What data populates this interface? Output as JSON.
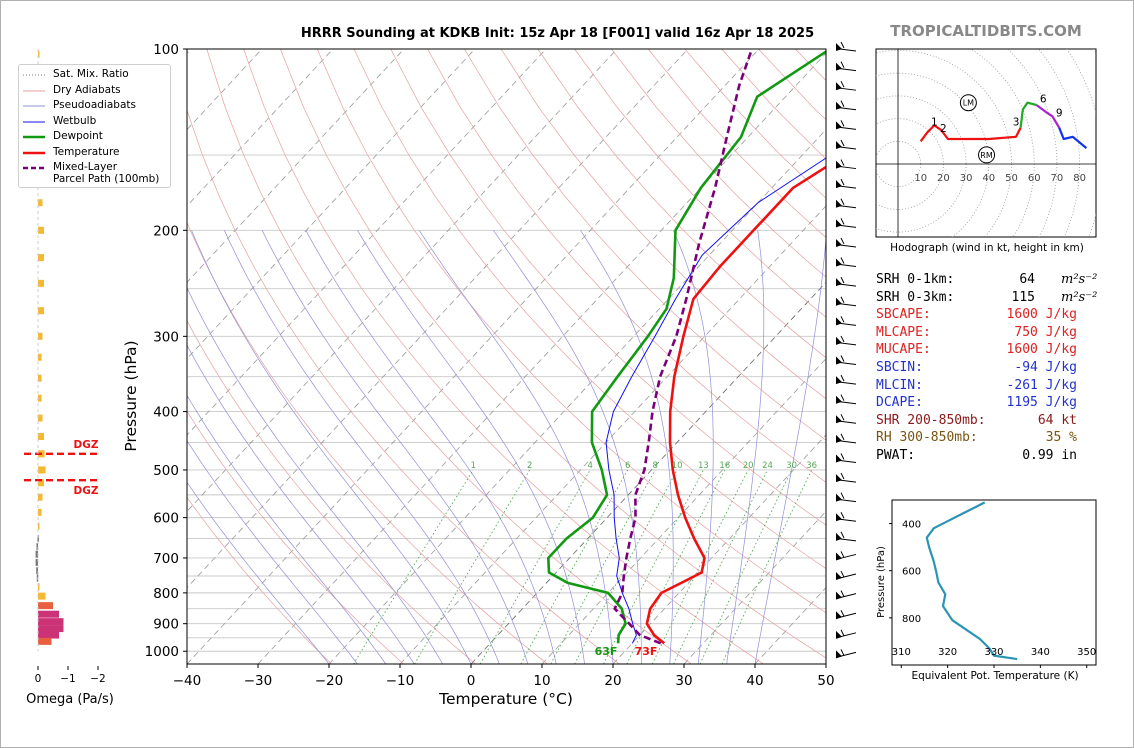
{
  "title": "HRRR Sounding at KDKB Init: 15z Apr 18 [F001] valid 16z Apr 18 2025",
  "site": "TROPICALTIDBITS.COM",
  "legend": [
    {
      "label": "Sat. Mix. Ratio",
      "color": "#777777",
      "style": "dotted"
    },
    {
      "label": "Dry Adiabats",
      "color": "#e6a0a0",
      "style": "solid"
    },
    {
      "label": "Pseudoadiabats",
      "color": "#9090d8",
      "style": "solid"
    },
    {
      "label": "Wetbulb",
      "color": "#1010ee",
      "style": "solid"
    },
    {
      "label": "Dewpoint",
      "color": "#119911",
      "style": "thick"
    },
    {
      "label": "Temperature",
      "color": "#ee1111",
      "style": "thick"
    },
    {
      "label": "Mixed-Layer",
      "label2": "Parcel Path (100mb)",
      "color": "#7a007a",
      "style": "dashed"
    }
  ],
  "params": [
    {
      "label": "SRH 0-1km:",
      "value": "64",
      "unit": "m²s⁻²",
      "color": "#000000"
    },
    {
      "label": "SRH 0-3km:",
      "value": "115",
      "unit": "m²s⁻²",
      "color": "#000000"
    },
    {
      "label": "SBCAPE:",
      "value": "1600 J/kg",
      "unit": "",
      "color": "#dd2222"
    },
    {
      "label": "MLCAPE:",
      "value": "750 J/kg",
      "unit": "",
      "color": "#dd2222"
    },
    {
      "label": "MUCAPE:",
      "value": "1600 J/kg",
      "unit": "",
      "color": "#dd2222"
    },
    {
      "label": "SBCIN:",
      "value": "-94 J/kg",
      "unit": "",
      "color": "#2233cc"
    },
    {
      "label": "MLCIN:",
      "value": "-261 J/kg",
      "unit": "",
      "color": "#2233cc"
    },
    {
      "label": "DCAPE:",
      "value": "1195 J/kg",
      "unit": "",
      "color": "#2233cc"
    },
    {
      "label": "SHR 200-850mb:",
      "value": "64 kt",
      "unit": "",
      "color": "#8a1a1a"
    },
    {
      "label": "RH 300-850mb:",
      "value": "35 %",
      "unit": "",
      "color": "#7a5510"
    },
    {
      "label": "PWAT:",
      "value": "0.99 in",
      "unit": "",
      "color": "#000000"
    }
  ],
  "chart_data": [
    {
      "type": "line",
      "title": "HRRR Sounding at KDKB Init: 15z Apr 18 [F001] valid 16z Apr 18 2025",
      "xlabel": "Temperature (°C)",
      "ylabel": "Pressure (hPa)",
      "xlim": [
        -40,
        50
      ],
      "ylim": [
        1050,
        100
      ],
      "y_scale": "log",
      "skew": "skew-T",
      "x_ticks": [
        "−40",
        "−30",
        "−20",
        "−10",
        "0",
        "10",
        "20",
        "30",
        "40",
        "50"
      ],
      "y_ticks": [
        "100",
        "200",
        "300",
        "400",
        "500",
        "600",
        "700",
        "800",
        "900",
        "1000"
      ],
      "mixing_ratio_labels": [
        "1",
        "2",
        "4",
        "6",
        "8",
        "10",
        "13",
        "16",
        "20",
        "24",
        "30",
        "36"
      ],
      "surface_labels": {
        "dewpoint": "63F",
        "temperature": "73F"
      },
      "series": [
        {
          "name": "Temperature",
          "color": "#ee1111",
          "points": [
            [
              24.5,
              970
            ],
            [
              22,
              940
            ],
            [
              19.5,
              900
            ],
            [
              18,
              850
            ],
            [
              17.5,
              800
            ],
            [
              19,
              770
            ],
            [
              20.5,
              740
            ],
            [
              19,
              700
            ],
            [
              15,
              650
            ],
            [
              11,
              600
            ],
            [
              7,
              550
            ],
            [
              3,
              500
            ],
            [
              -1,
              450
            ],
            [
              -5,
              400
            ],
            [
              -9,
              350
            ],
            [
              -13,
              300
            ],
            [
              -16.5,
              260
            ],
            [
              -17,
              230
            ],
            [
              -17,
              200
            ],
            [
              -17,
              170
            ],
            [
              -14,
              150
            ],
            [
              -8,
              130
            ],
            [
              -4,
              120
            ],
            [
              3,
              100
            ]
          ]
        },
        {
          "name": "Dewpoint",
          "color": "#119911",
          "points": [
            [
              18,
              970
            ],
            [
              17,
              940
            ],
            [
              16.5,
              900
            ],
            [
              14,
              850
            ],
            [
              10,
              800
            ],
            [
              3,
              770
            ],
            [
              -1,
              740
            ],
            [
              -3,
              700
            ],
            [
              -3,
              650
            ],
            [
              -2,
              600
            ],
            [
              -3,
              550
            ],
            [
              -7,
              500
            ],
            [
              -12,
              450
            ],
            [
              -16,
              400
            ],
            [
              -17,
              350
            ],
            [
              -18,
              300
            ],
            [
              -19,
              270
            ],
            [
              -22,
              240
            ],
            [
              -28,
              200
            ],
            [
              -30,
              170
            ],
            [
              -31,
              140
            ],
            [
              -34,
              120
            ],
            [
              -30,
              100
            ]
          ]
        },
        {
          "name": "Wetbulb",
          "color": "#1010ee",
          "points": [
            [
              20,
              970
            ],
            [
              19.5,
              940
            ],
            [
              17.5,
              900
            ],
            [
              15,
              850
            ],
            [
              12,
              800
            ],
            [
              9,
              750
            ],
            [
              7,
              700
            ],
            [
              4,
              650
            ],
            [
              1,
              600
            ],
            [
              -2,
              550
            ],
            [
              -6,
              500
            ],
            [
              -10,
              450
            ],
            [
              -13,
              400
            ],
            [
              -15,
              350
            ],
            [
              -17,
              300
            ],
            [
              -19,
              260
            ],
            [
              -21,
              220
            ],
            [
              -20,
              180
            ],
            [
              -16,
              150
            ],
            [
              -8,
              130
            ],
            [
              -4,
              120
            ],
            [
              3,
              100
            ]
          ]
        },
        {
          "name": "Mixed-Layer Parcel Path (100mb)",
          "color": "#7a007a",
          "points": [
            [
              24,
              970
            ],
            [
              20,
              940
            ],
            [
              17,
              900
            ],
            [
              13,
              850
            ],
            [
              12,
              800
            ],
            [
              10,
              750
            ],
            [
              8,
              700
            ],
            [
              6,
              650
            ],
            [
              4,
              600
            ],
            [
              1,
              550
            ],
            [
              -1,
              500
            ],
            [
              -4,
              450
            ],
            [
              -7.5,
              400
            ],
            [
              -11,
              350
            ],
            [
              -14,
              300
            ],
            [
              -17.5,
              260
            ],
            [
              -23,
              210
            ],
            [
              -28,
              170
            ],
            [
              -33,
              140
            ],
            [
              -38,
              115
            ],
            [
              -41,
              100
            ]
          ]
        }
      ]
    },
    {
      "type": "bar",
      "xlabel": "Omega (Pa/s)",
      "x_ticks": [
        "0",
        "−1",
        "−2"
      ],
      "annotations": [
        "DGZ",
        "DGZ"
      ],
      "dgz_pressure": [
        470,
        520
      ],
      "bars": [
        {
          "p": 102,
          "omega": -0.05
        },
        {
          "p": 118,
          "omega": -0.05
        },
        {
          "p": 135,
          "omega": -0.08
        },
        {
          "p": 150,
          "omega": -0.12
        },
        {
          "p": 163,
          "omega": -0.12
        },
        {
          "p": 180,
          "omega": -0.15
        },
        {
          "p": 200,
          "omega": -0.2
        },
        {
          "p": 222,
          "omega": -0.2
        },
        {
          "p": 245,
          "omega": -0.2
        },
        {
          "p": 272,
          "omega": -0.2
        },
        {
          "p": 300,
          "omega": -0.15
        },
        {
          "p": 325,
          "omega": -0.12
        },
        {
          "p": 352,
          "omega": -0.12
        },
        {
          "p": 380,
          "omega": -0.12
        },
        {
          "p": 410,
          "omega": -0.15
        },
        {
          "p": 440,
          "omega": -0.2
        },
        {
          "p": 470,
          "omega": -0.22
        },
        {
          "p": 500,
          "omega": -0.25
        },
        {
          "p": 525,
          "omega": -0.2
        },
        {
          "p": 555,
          "omega": -0.15
        },
        {
          "p": 588,
          "omega": -0.12
        },
        {
          "p": 620,
          "omega": -0.02
        },
        {
          "p": 650,
          "omega": 0.02
        },
        {
          "p": 670,
          "omega": 0.05
        },
        {
          "p": 690,
          "omega": 0.08
        },
        {
          "p": 712,
          "omega": 0.08
        },
        {
          "p": 735,
          "omega": 0.06
        },
        {
          "p": 756,
          "omega": 0.04
        },
        {
          "p": 782,
          "omega": -0.05
        },
        {
          "p": 810,
          "omega": -0.25
        },
        {
          "p": 840,
          "omega": -0.5
        },
        {
          "p": 868,
          "omega": -0.7
        },
        {
          "p": 893,
          "omega": -0.85
        },
        {
          "p": 917,
          "omega": -0.85
        },
        {
          "p": 940,
          "omega": -0.7
        },
        {
          "p": 963,
          "omega": -0.45
        }
      ]
    },
    {
      "type": "line",
      "title": "Hodograph (wind in kt, height in km)",
      "x_ticks": [
        "10",
        "20",
        "30",
        "40",
        "50",
        "60",
        "70",
        "80"
      ],
      "height_labels": [
        "1",
        "2",
        "3",
        "6",
        "9"
      ],
      "markers": [
        "LM",
        "RM"
      ],
      "points": [
        {
          "u": 10,
          "v": 10
        },
        {
          "u": 13,
          "v": 14
        },
        {
          "u": 16,
          "v": 17
        },
        {
          "u": 19,
          "v": 15
        },
        {
          "u": 22,
          "v": 11
        },
        {
          "u": 30,
          "v": 11
        },
        {
          "u": 40,
          "v": 11
        },
        {
          "u": 52,
          "v": 12
        },
        {
          "u": 54,
          "v": 16
        },
        {
          "u": 55,
          "v": 24
        },
        {
          "u": 57,
          "v": 27
        },
        {
          "u": 61,
          "v": 26
        },
        {
          "u": 65,
          "v": 23
        },
        {
          "u": 68,
          "v": 21
        },
        {
          "u": 71,
          "v": 16
        },
        {
          "u": 73,
          "v": 11
        },
        {
          "u": 77,
          "v": 12
        },
        {
          "u": 83,
          "v": 7
        }
      ]
    },
    {
      "type": "line",
      "xlabel": "Equivalent Pot. Temperature (K)",
      "ylabel": "Pressure (hPa)",
      "xlim": [
        308,
        352
      ],
      "x_ticks": [
        "310",
        "320",
        "330",
        "340",
        "350"
      ],
      "y_ticks": [
        "400",
        "600",
        "800"
      ],
      "points": [
        [
          335,
          975
        ],
        [
          330,
          960
        ],
        [
          329,
          930
        ],
        [
          327,
          890
        ],
        [
          321,
          810
        ],
        [
          319,
          750
        ],
        [
          319.5,
          700
        ],
        [
          318,
          650
        ],
        [
          317.5,
          600
        ],
        [
          317,
          560
        ],
        [
          316,
          500
        ],
        [
          315.5,
          460
        ],
        [
          317,
          420
        ],
        [
          320,
          390
        ],
        [
          323,
          360
        ],
        [
          326,
          330
        ],
        [
          328,
          310
        ]
      ]
    }
  ]
}
